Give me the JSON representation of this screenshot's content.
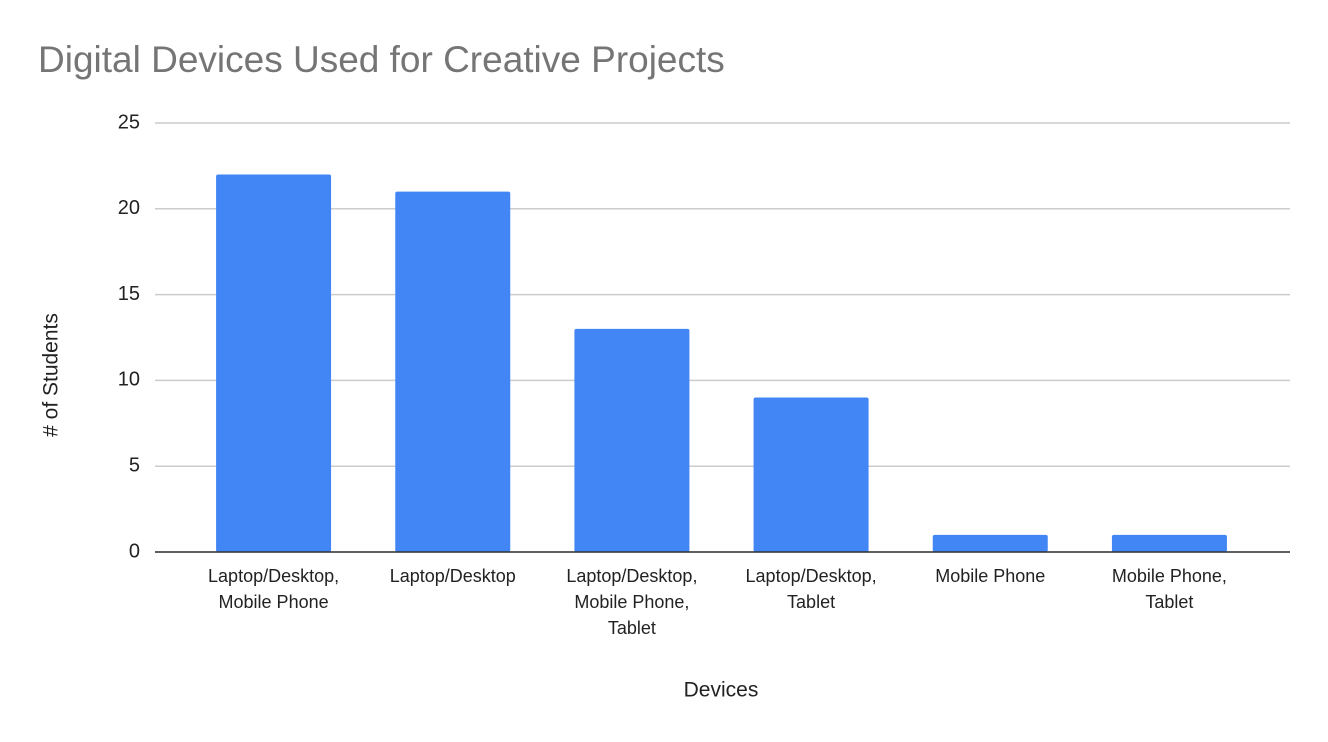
{
  "chart_data": {
    "type": "bar",
    "title": "Digital Devices Used for Creative Projects",
    "x_label": "Devices",
    "y_label": "# of Students",
    "categories": [
      "Laptop/Desktop, Mobile Phone",
      "Laptop/Desktop",
      "Laptop/Desktop, Mobile Phone, Tablet",
      "Laptop/Desktop, Tablet",
      "Mobile Phone",
      "Mobile Phone, Tablet"
    ],
    "values": [
      22,
      21,
      13,
      9,
      1,
      1
    ],
    "color": "#4285f4",
    "ylim": [
      0,
      25
    ],
    "yticks": [
      0,
      5,
      10,
      15,
      20,
      25
    ],
    "grid": true
  }
}
